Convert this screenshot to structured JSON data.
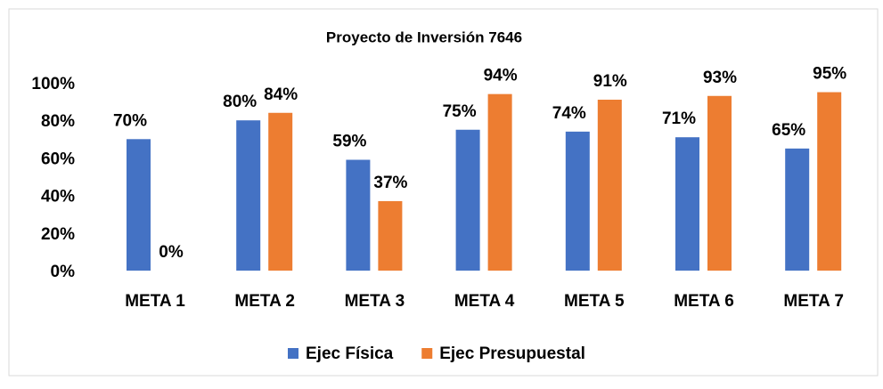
{
  "chart_data": {
    "type": "bar",
    "title": "Proyecto de Inversión 7646",
    "categories": [
      "META 1",
      "META 2",
      "META 3",
      "META 4",
      "META 5",
      "META 6",
      "META 7"
    ],
    "series": [
      {
        "name": "Ejec Física",
        "color": "#4472c4",
        "values": [
          70,
          80,
          59,
          75,
          74,
          71,
          65
        ],
        "value_labels": [
          "70%",
          "80%",
          "59%",
          "75%",
          "74%",
          "71%",
          "65%"
        ]
      },
      {
        "name": "Ejec Presupuestal",
        "color": "#ed7d31",
        "values": [
          0,
          84,
          37,
          94,
          91,
          93,
          95
        ],
        "value_labels": [
          "0%",
          "84%",
          "37%",
          "94%",
          "91%",
          "93%",
          "95%"
        ]
      }
    ],
    "ylim": [
      0,
      100
    ],
    "yticks": [
      {
        "value": 0,
        "label": "0%"
      },
      {
        "value": 20,
        "label": "20%"
      },
      {
        "value": 40,
        "label": "40%"
      },
      {
        "value": 60,
        "label": "60%"
      },
      {
        "value": 80,
        "label": "80%"
      },
      {
        "value": 100,
        "label": "100%"
      }
    ],
    "grid": false,
    "legend": "bottom"
  }
}
